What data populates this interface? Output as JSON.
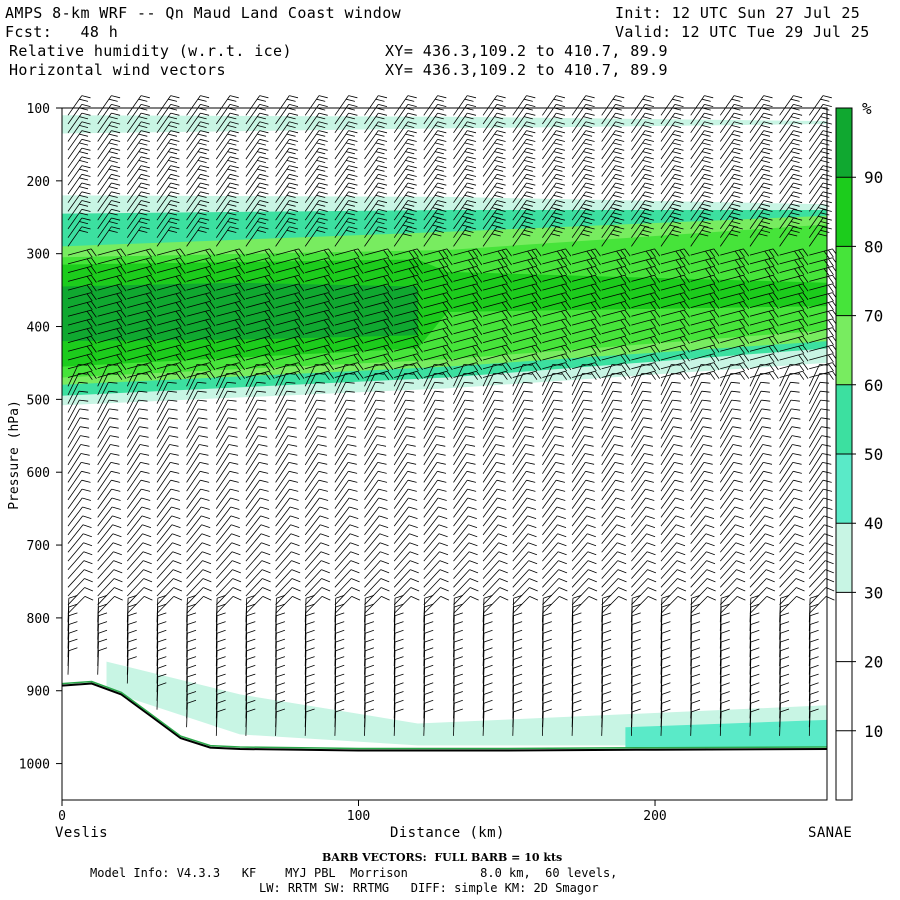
{
  "header": {
    "title": "AMPS 8-km WRF -- Qn Maud Land Coast window",
    "init": "Init: 12 UTC Sun 27 Jul 25",
    "fcst": "Fcst:   48 h",
    "valid": "Valid: 12 UTC Tue 29 Jul 25",
    "field1": "Relative humidity (w.r.t. ice)",
    "field1_xy": "XY= 436.3,109.2 to 410.7, 89.9",
    "field2": "Horizontal wind vectors",
    "field2_xy": "XY= 436.3,109.2 to 410.7, 89.9"
  },
  "chart_data": {
    "type": "heatmap",
    "ylabel": "Pressure (hPa)",
    "xlabel": "Distance (km)",
    "x_range": [
      0,
      258
    ],
    "y_range": [
      1050,
      100
    ],
    "y_ticks": [
      "100",
      "200",
      "300",
      "400",
      "500",
      "600",
      "700",
      "800",
      "900",
      "1000"
    ],
    "x_ticks": [
      "0",
      "100",
      "200"
    ],
    "left_endpoint": "Veslis",
    "right_endpoint": "SANAE",
    "colorbar": {
      "unit": "%",
      "labels": [
        "10",
        "20",
        "30",
        "40",
        "50",
        "60",
        "70",
        "80",
        "90"
      ],
      "levels": [
        0,
        10,
        20,
        30,
        40,
        50,
        60,
        70,
        80,
        90,
        100
      ],
      "colors": [
        "#ffffff",
        "#ffffff",
        "#ffffff",
        "#c8f5e4",
        "#5aeac8",
        "#3ce0a0",
        "#78ec60",
        "#46e43a",
        "#1ccc1c",
        "#10a830",
        "#087a20"
      ]
    },
    "terrain_surface_hPa": [
      [
        0,
        893
      ],
      [
        10,
        890
      ],
      [
        20,
        905
      ],
      [
        30,
        935
      ],
      [
        40,
        965
      ],
      [
        50,
        978
      ],
      [
        60,
        980
      ],
      [
        100,
        982
      ],
      [
        150,
        982
      ],
      [
        200,
        981
      ],
      [
        258,
        980
      ]
    ],
    "rh_layers": [
      {
        "level": 30,
        "top": [
          [
            0,
            110
          ],
          [
            130,
            112
          ],
          [
            258,
            118
          ]
        ],
        "bottom": [
          [
            0,
            135
          ],
          [
            130,
            128
          ],
          [
            258,
            122
          ]
        ]
      },
      {
        "level": 30,
        "top": [
          [
            0,
            220
          ],
          [
            130,
            222
          ],
          [
            258,
            232
          ]
        ],
        "bottom": [
          [
            0,
            508
          ],
          [
            130,
            485
          ],
          [
            258,
            450
          ]
        ]
      },
      {
        "level": 50,
        "top": [
          [
            0,
            245
          ],
          [
            130,
            240
          ],
          [
            258,
            240
          ]
        ],
        "bottom": [
          [
            0,
            495
          ],
          [
            130,
            470
          ],
          [
            258,
            430
          ]
        ]
      },
      {
        "level": 60,
        "top": [
          [
            0,
            290
          ],
          [
            130,
            270
          ],
          [
            258,
            248
          ]
        ],
        "bottom": [
          [
            0,
            480
          ],
          [
            130,
            455
          ],
          [
            258,
            420
          ]
        ]
      },
      {
        "level": 70,
        "top": [
          [
            0,
            305
          ],
          [
            130,
            295
          ],
          [
            258,
            260
          ]
        ],
        "bottom": [
          [
            0,
            470
          ],
          [
            130,
            445
          ],
          [
            258,
            405
          ]
        ]
      },
      {
        "level": 80,
        "top": [
          [
            0,
            315
          ],
          [
            120,
            308
          ],
          [
            130,
            325
          ],
          [
            258,
            340
          ]
        ],
        "bottom": [
          [
            0,
            455
          ],
          [
            120,
            430
          ],
          [
            130,
            380
          ],
          [
            258,
            372
          ]
        ]
      },
      {
        "level": 90,
        "top": [
          [
            0,
            345
          ],
          [
            60,
            340
          ],
          [
            120,
            345
          ]
        ],
        "bottom": [
          [
            0,
            420
          ],
          [
            60,
            418
          ],
          [
            120,
            412
          ]
        ]
      },
      {
        "level": 30,
        "top": [
          [
            15,
            860
          ],
          [
            60,
            905
          ],
          [
            120,
            945
          ],
          [
            258,
            920
          ]
        ],
        "bottom": [
          [
            15,
            900
          ],
          [
            60,
            960
          ],
          [
            120,
            975
          ],
          [
            258,
            975
          ]
        ]
      },
      {
        "level": 40,
        "top": [
          [
            190,
            950
          ],
          [
            258,
            940
          ]
        ],
        "bottom": [
          [
            190,
            978
          ],
          [
            258,
            978
          ]
        ]
      }
    ],
    "wind_barbs": "full barb = 10 kts",
    "barb_columns_km": [
      0,
      10,
      20,
      30,
      40,
      50,
      60,
      70,
      80,
      90,
      100,
      110,
      120,
      130,
      140,
      150,
      160,
      170,
      180,
      190,
      200,
      210,
      220,
      230,
      240,
      250
    ]
  },
  "footer": {
    "barb_note": "BARB VECTORS:  FULL BARB = 10 kts",
    "model_line1": "Model Info: V4.3.3   KF    MYJ PBL  Morrison          8.0 km,  60 levels,",
    "model_line2": "LW: RRTM SW: RRTMG   DIFF: simple KM: 2D Smagor"
  }
}
